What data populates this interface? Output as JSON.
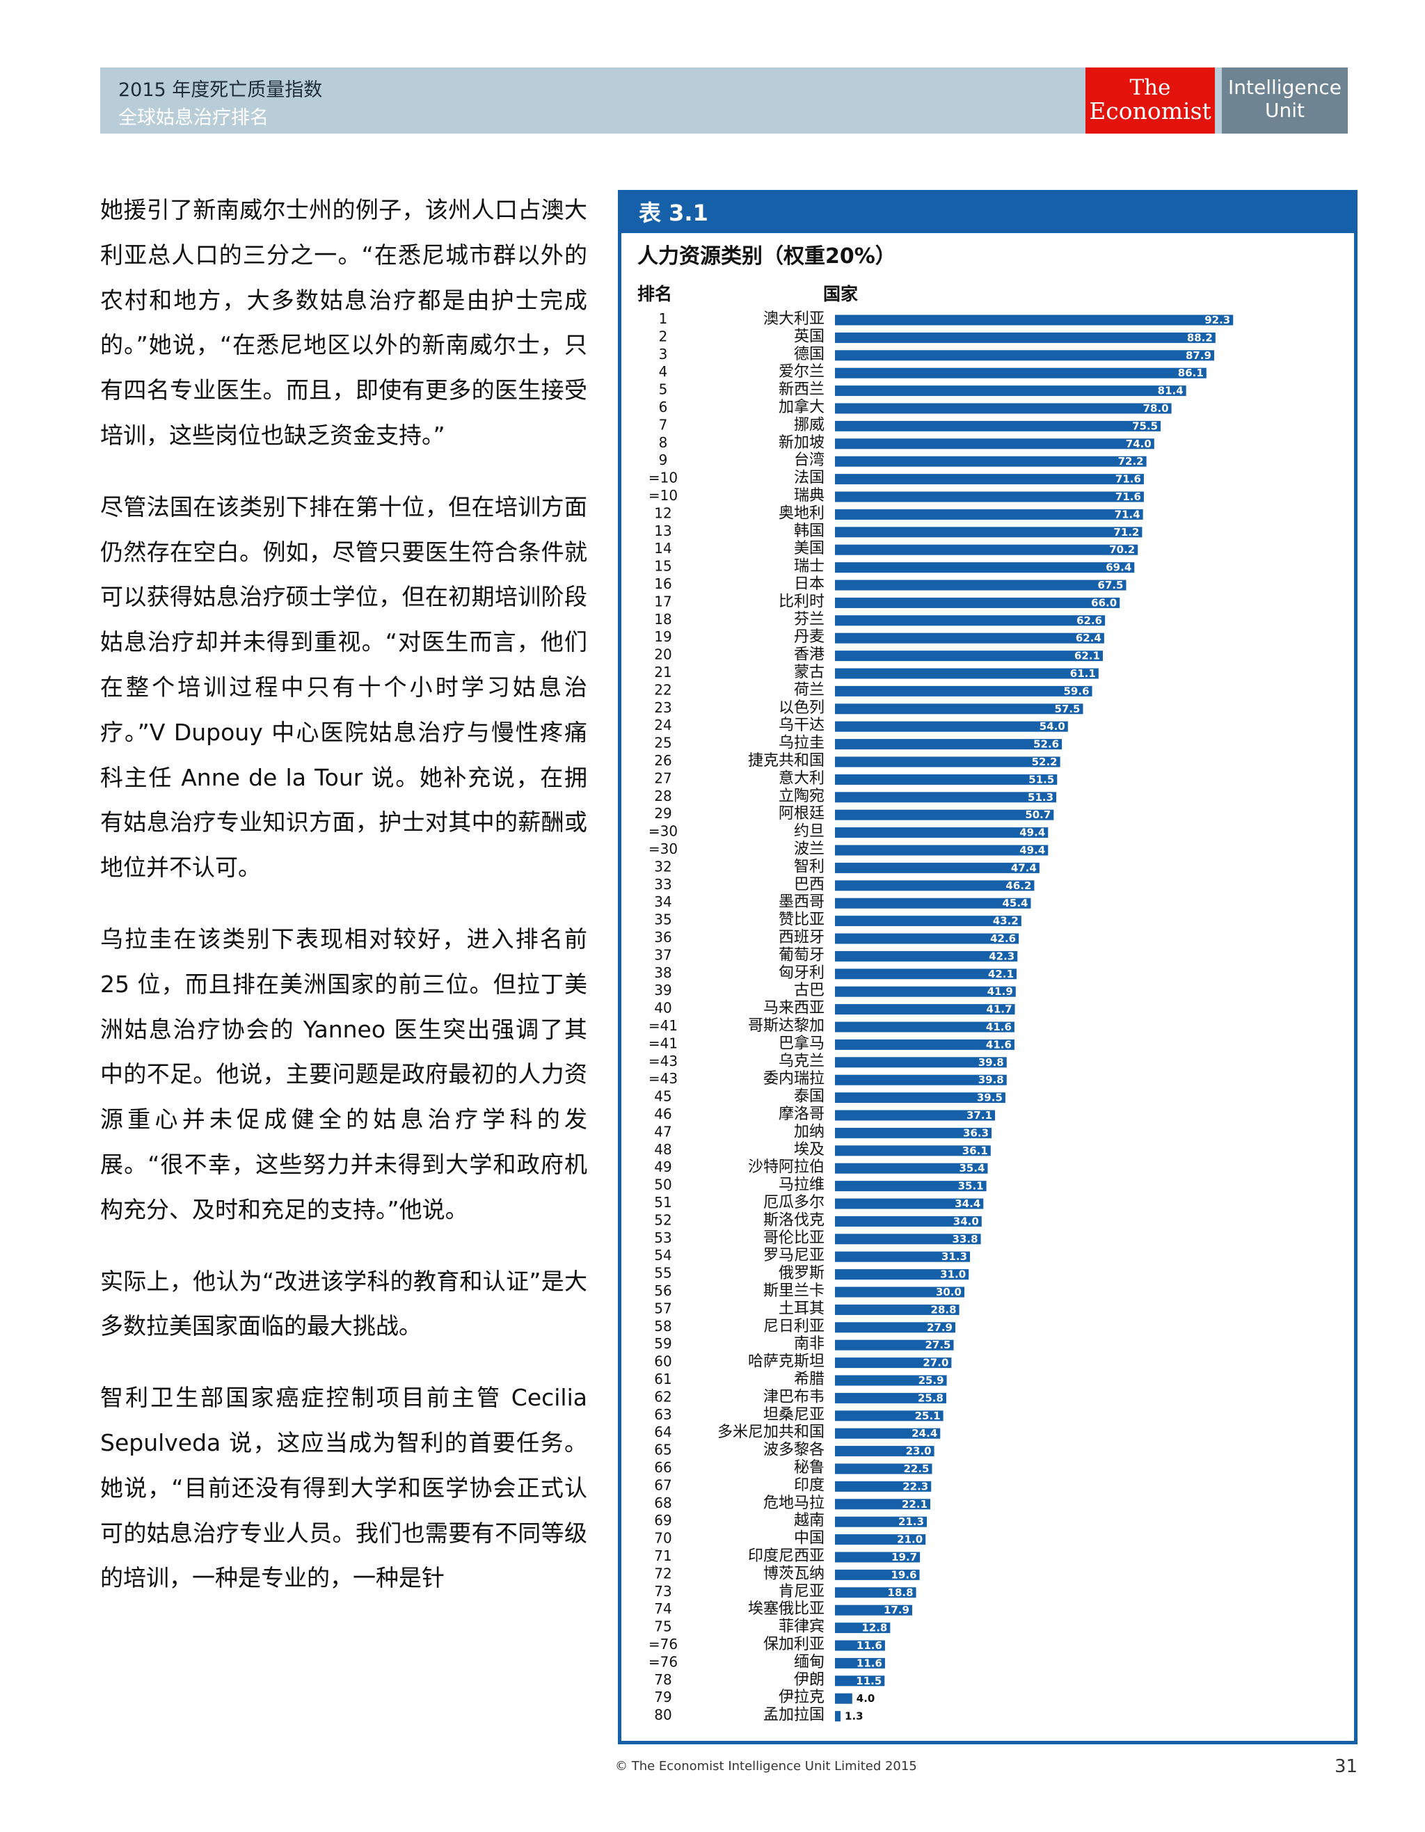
{
  "header": {
    "title": "2015 年度死亡质量指数",
    "subtitle": "全球姑息治疗排名",
    "logo_economist_line1": "The",
    "logo_economist_line2": "Economist",
    "logo_eiu_line1": "Intelligence",
    "logo_eiu_line2": "Unit",
    "colors": {
      "band": "#b9cdd9",
      "economist": "#e3120b",
      "eiu": "#6f8492"
    }
  },
  "body": {
    "paragraphs": [
      "她援引了新南威尔士州的例子，该州人口占澳大利亚总人口的三分之一。“在悉尼城市群以外的农村和地方，大多数姑息治疗都是由护士完成的。”她说，“在悉尼地区以外的新南威尔士，只有四名专业医生。而且，即使有更多的医生接受培训，这些岗位也缺乏资金支持。”",
      "尽管法国在该类别下排在第十位，但在培训方面仍然存在空白。例如，尽管只要医生符合条件就可以获得姑息治疗硕士学位，但在初期培训阶段姑息治疗却并未得到重视。“对医生而言，他们在整个培训过程中只有十个小时学习姑息治疗。”V Dupouy 中心医院姑息治疗与慢性疼痛科主任 Anne de la Tour 说。她补充说，在拥有姑息治疗专业知识方面，护士对其中的薪酬或地位并不认可。",
      "乌拉圭在该类别下表现相对较好，进入排名前 25 位，而且排在美洲国家的前三位。但拉丁美洲姑息治疗协会的 Yanneo 医生突出强调了其中的不足。他说，主要问题是政府最初的人力资源重心并未促成健全的姑息治疗学科的发展。“很不幸，这些努力并未得到大学和政府机构充分、及时和充足的支持。”他说。",
      "实际上，他认为“改进该学科的教育和认证”是大多数拉美国家面临的最大挑战。",
      "智利卫生部国家癌症控制项目前主管 Cecilia Sepulveda 说，这应当成为智利的首要任务。她说，“目前还没有得到大学和医学协会正式认可的姑息治疗专业人员。我们也需要有不同等级的培训，一种是专业的，一种是针"
    ]
  },
  "chart_data": {
    "type": "bar",
    "orientation": "horizontal",
    "label": "表 3.1",
    "title": "人力资源类别（权重20%）",
    "rank_header": "排名",
    "country_header": "国家",
    "xlim": [
      0,
      100
    ],
    "bar_color": "#1560a8",
    "ranks": [
      "1",
      "2",
      "3",
      "4",
      "5",
      "6",
      "7",
      "8",
      "9",
      "=10",
      "=10",
      "12",
      "13",
      "14",
      "15",
      "16",
      "17",
      "18",
      "19",
      "20",
      "21",
      "22",
      "23",
      "24",
      "25",
      "26",
      "27",
      "28",
      "29",
      "=30",
      "=30",
      "32",
      "33",
      "34",
      "35",
      "36",
      "37",
      "38",
      "39",
      "40",
      "=41",
      "=41",
      "=43",
      "=43",
      "45",
      "46",
      "47",
      "48",
      "49",
      "50",
      "51",
      "52",
      "53",
      "54",
      "55",
      "56",
      "57",
      "58",
      "59",
      "60",
      "61",
      "62",
      "63",
      "64",
      "65",
      "66",
      "67",
      "68",
      "69",
      "70",
      "71",
      "72",
      "73",
      "74",
      "75",
      "=76",
      "=76",
      "78",
      "79",
      "80"
    ],
    "categories": [
      "澳大利亚",
      "英国",
      "德国",
      "爱尔兰",
      "新西兰",
      "加拿大",
      "挪威",
      "新加坡",
      "台湾",
      "法国",
      "瑞典",
      "奥地利",
      "韩国",
      "美国",
      "瑞士",
      "日本",
      "比利时",
      "芬兰",
      "丹麦",
      "香港",
      "蒙古",
      "荷兰",
      "以色列",
      "乌干达",
      "乌拉圭",
      "捷克共和国",
      "意大利",
      "立陶宛",
      "阿根廷",
      "约旦",
      "波兰",
      "智利",
      "巴西",
      "墨西哥",
      "赞比亚",
      "西班牙",
      "葡萄牙",
      "匈牙利",
      "古巴",
      "马来西亚",
      "哥斯达黎加",
      "巴拿马",
      "乌克兰",
      "委内瑞拉",
      "泰国",
      "摩洛哥",
      "加纳",
      "埃及",
      "沙特阿拉伯",
      "马拉维",
      "厄瓜多尔",
      "斯洛伐克",
      "哥伦比亚",
      "罗马尼亚",
      "俄罗斯",
      "斯里兰卡",
      "土耳其",
      "尼日利亚",
      "南非",
      "哈萨克斯坦",
      "希腊",
      "津巴布韦",
      "坦桑尼亚",
      "多米尼加共和国",
      "波多黎各",
      "秘鲁",
      "印度",
      "危地马拉",
      "越南",
      "中国",
      "印度尼西亚",
      "博茨瓦纳",
      "肯尼亚",
      "埃塞俄比亚",
      "菲律宾",
      "保加利亚",
      "缅甸",
      "伊朗",
      "伊拉克",
      "孟加拉国"
    ],
    "values": [
      92.3,
      88.2,
      87.9,
      86.1,
      81.4,
      78.0,
      75.5,
      74.0,
      72.2,
      71.6,
      71.6,
      71.4,
      71.2,
      70.2,
      69.4,
      67.5,
      66.0,
      62.6,
      62.4,
      62.1,
      61.1,
      59.6,
      57.5,
      54.0,
      52.6,
      52.2,
      51.5,
      51.3,
      50.7,
      49.4,
      49.4,
      47.4,
      46.2,
      45.4,
      43.2,
      42.6,
      42.3,
      42.1,
      41.9,
      41.7,
      41.6,
      41.6,
      39.8,
      39.8,
      39.5,
      37.1,
      36.3,
      36.1,
      35.4,
      35.1,
      34.4,
      34.0,
      33.8,
      31.3,
      31.0,
      30.0,
      28.8,
      27.9,
      27.5,
      27.0,
      25.9,
      25.8,
      25.1,
      24.4,
      23.0,
      22.5,
      22.3,
      22.1,
      21.3,
      21.0,
      19.7,
      19.6,
      18.8,
      17.9,
      12.8,
      11.6,
      11.6,
      11.5,
      4.0,
      1.3
    ],
    "value_labels": [
      "92.3",
      "88.2",
      "87.9",
      "86.1",
      "81.4",
      "78.0",
      "75.5",
      "74.0",
      "72.2",
      "71.6",
      "71.6",
      "71.4",
      "71.2",
      "70.2",
      "69.4",
      "67.5",
      "66.0",
      "62.6",
      "62.4",
      "62.1",
      "61.1",
      "59.6",
      "57.5",
      "54.0",
      "52.6",
      "52.2",
      "51.5",
      "51.3",
      "50.7",
      "49.4",
      "49.4",
      "47.4",
      "46.2",
      "45.4",
      "43.2",
      "42.6",
      "42.3",
      "42.1",
      "41.9",
      "41.7",
      "41.6",
      "41.6",
      "39.8",
      "39.8",
      "39.5",
      "37.1",
      "36.3",
      "36.1",
      "35.4",
      "35.1",
      "34.4",
      "34.0",
      "33.8",
      "31.3",
      "31.0",
      "30.0",
      "28.8",
      "27.9",
      "27.5",
      "27.0",
      "25.9",
      "25.8",
      "25.1",
      "24.4",
      "23.0",
      "22.5",
      "22.3",
      "22.1",
      "21.3",
      "21.0",
      "19.7",
      "19.6",
      "18.8",
      "17.9",
      "12.8",
      "11.6",
      "11.6",
      "11.5",
      "4.0",
      "1.3"
    ]
  },
  "footer": {
    "copyright": "© The Economist Intelligence Unit Limited 2015",
    "page_number": "31"
  }
}
